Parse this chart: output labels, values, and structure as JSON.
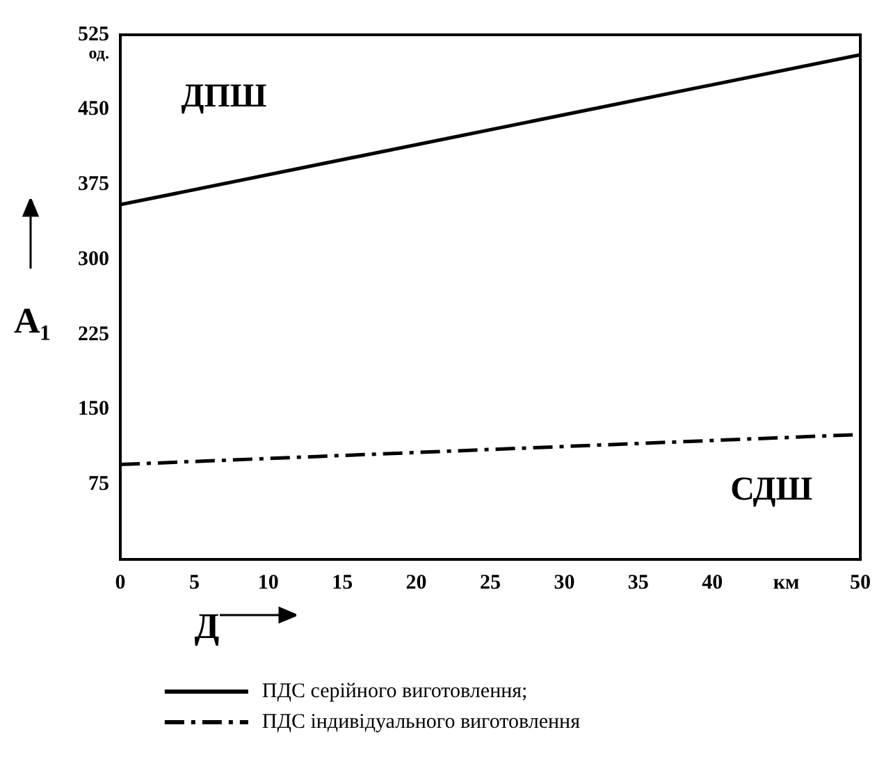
{
  "chart_data": {
    "type": "line",
    "xlabel": "Д",
    "ylabel": "A₁",
    "x": [
      0,
      50
    ],
    "series": [
      {
        "name": "ПДС серійного виготовлення;",
        "color": "#000000",
        "values": [
          355,
          505
        ],
        "line_style": "solid"
      },
      {
        "name": "ПДС індивідуального виготовлення",
        "color": "#000000",
        "values": [
          95,
          125
        ],
        "line_style": "dashdot"
      }
    ],
    "xlim": [
      0,
      50
    ],
    "xticks": [
      0,
      5,
      10,
      15,
      20,
      25,
      30,
      35,
      40,
      {
        "value": 45,
        "label": "км"
      },
      50
    ],
    "ylim": [
      0,
      525
    ],
    "yticks": [
      75,
      150,
      225,
      300,
      375,
      450,
      525
    ],
    "annotations": [
      "од.",
      "ДПШ",
      "СДШ"
    ],
    "grid": false,
    "legend": "bottom",
    "marker": "none"
  }
}
